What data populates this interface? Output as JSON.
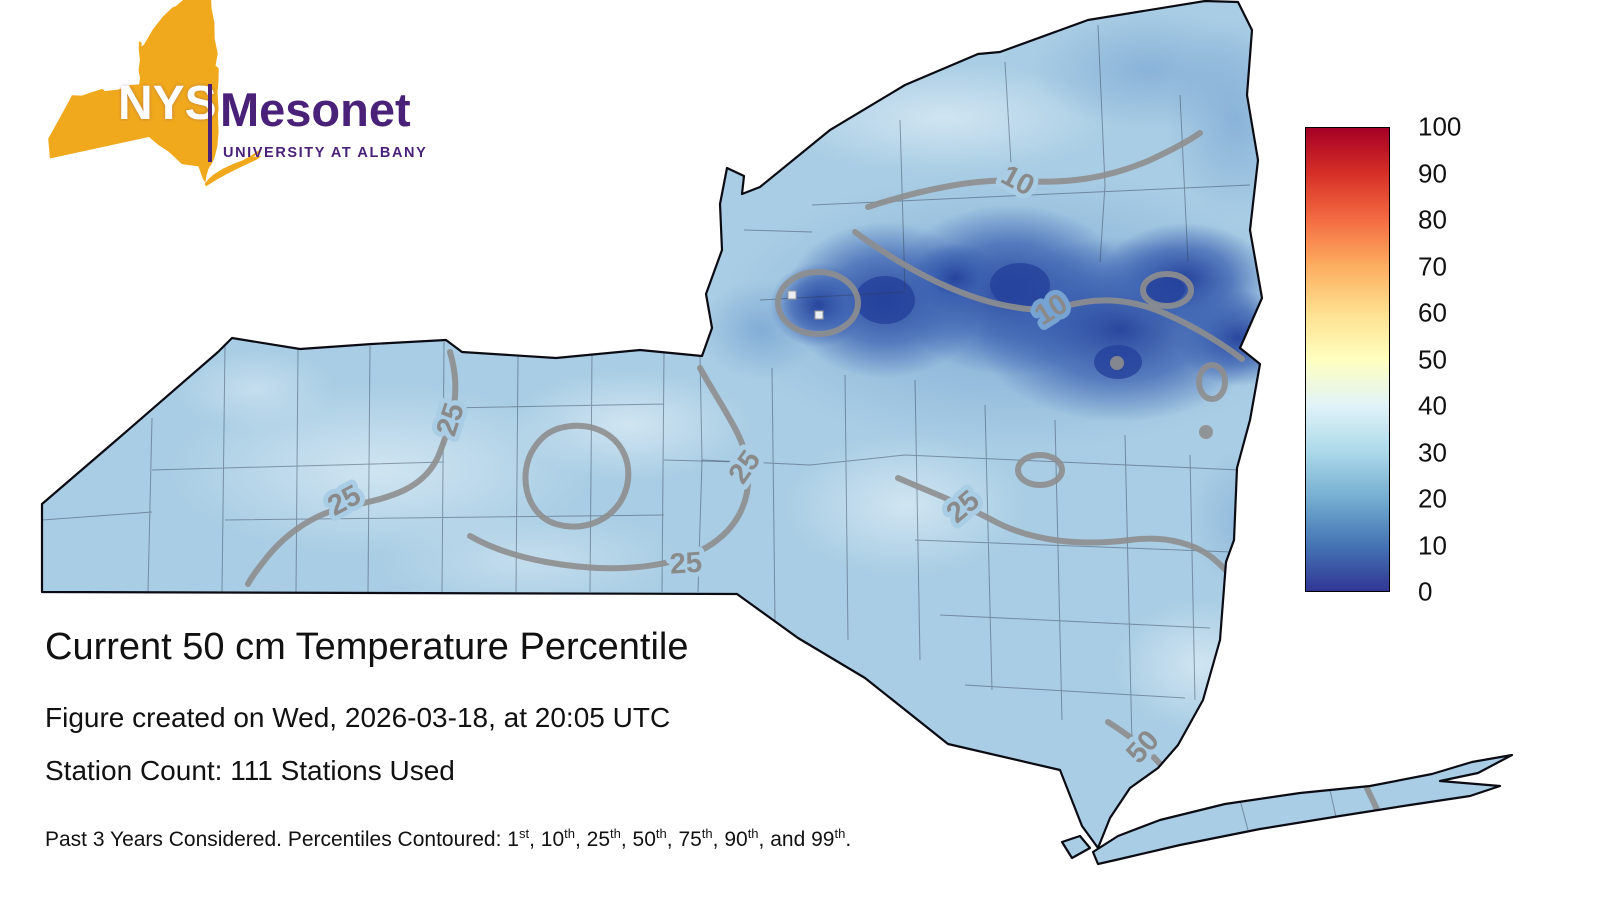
{
  "logo": {
    "nys": "NYS",
    "mesonet": "Mesonet",
    "university": "UNIVERSITY AT ALBANY"
  },
  "title": "Current 50 cm Temperature Percentile",
  "created_line": "Figure created on Wed, 2026-03-18, at 20:05 UTC",
  "station_line": "Station Count: 111 Stations Used",
  "footnote": {
    "prefix": "Past 3 Years Considered. Percentiles Contoured: ",
    "items": [
      {
        "base": "1",
        "sup": "st",
        "sep": ", "
      },
      {
        "base": "10",
        "sup": "th",
        "sep": ", "
      },
      {
        "base": "25",
        "sup": "th",
        "sep": ", "
      },
      {
        "base": "50",
        "sup": "th",
        "sep": ", "
      },
      {
        "base": "75",
        "sup": "th",
        "sep": ", "
      },
      {
        "base": "90",
        "sup": "th",
        "sep": ", and "
      },
      {
        "base": "99",
        "sup": "th",
        "sep": "."
      }
    ]
  },
  "colorbar": {
    "ticks": [
      "100",
      "90",
      "80",
      "70",
      "60",
      "50",
      "40",
      "30",
      "20",
      "10",
      "0"
    ],
    "stops": [
      "#a50026",
      "#d73027",
      "#f46d43",
      "#fdae61",
      "#fee090",
      "#ffffbf",
      "#e0f3f8",
      "#abd9e9",
      "#74add1",
      "#4575b4",
      "#313695"
    ]
  },
  "map": {
    "region": "New York State",
    "contour_labels": [
      "25",
      "25",
      "25",
      "25",
      "25",
      "10",
      "10",
      "50"
    ],
    "contour_levels_shown": [
      10,
      25,
      50
    ]
  },
  "colors": {
    "gold": "#F0A81C",
    "purple": "#4A2179",
    "map-base": "#A9CDE4",
    "map-light": "#D2E6F2",
    "map-mid": "#76A3D2",
    "map-dark": "#3A5FB0",
    "map-darkest": "#24419B",
    "contour": "#8E8E8E",
    "county": "#2F3B52",
    "outline": "#0B0B14",
    "text": "#111111"
  }
}
